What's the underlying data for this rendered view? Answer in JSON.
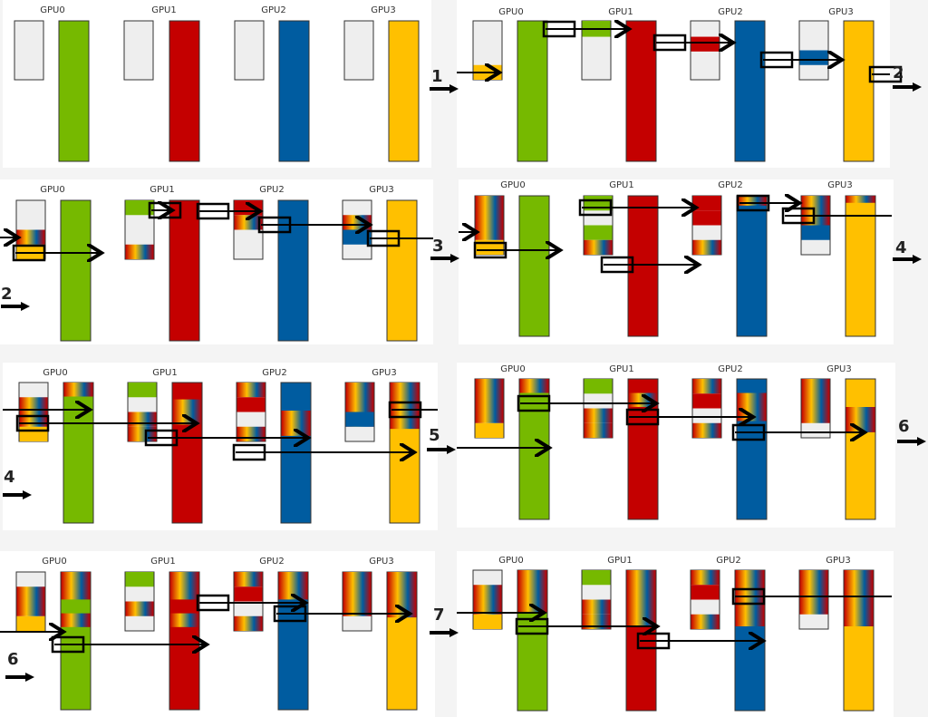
{
  "colors": {
    "gpu0": "#76b900",
    "gpu1": "#c40000",
    "gpu2": "#005ca0",
    "gpu3": "#ffc000",
    "empty": "#eeeeee",
    "border": "#000000"
  },
  "gpu_labels": [
    "GPU0",
    "GPU1",
    "GPU2",
    "GPU3"
  ],
  "steps": [
    {
      "number": "1"
    },
    {
      "number": "2"
    },
    {
      "number": "2"
    },
    {
      "number": "3"
    },
    {
      "number": "4"
    },
    {
      "number": "4"
    },
    {
      "number": "5"
    },
    {
      "number": "6"
    },
    {
      "number": "6"
    },
    {
      "number": "7"
    }
  ]
}
